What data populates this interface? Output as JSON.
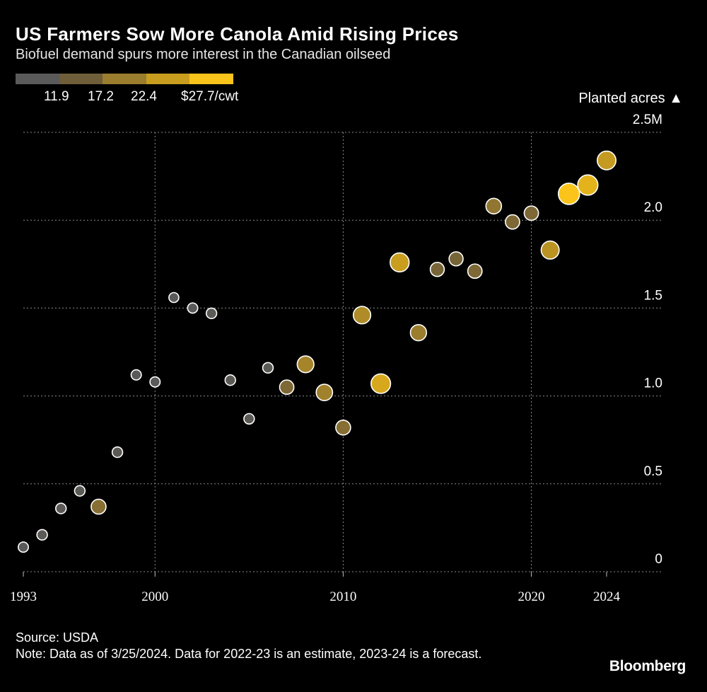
{
  "header": {
    "title": "US Farmers Sow More Canola Amid Rising Prices",
    "subtitle": "Biofuel demand spurs more interest in the Canadian oilseed"
  },
  "legend": {
    "colors": [
      "#5a5a5a",
      "#6e5e3a",
      "#9b7d2e",
      "#c99e1e",
      "#fbc41b"
    ],
    "labels": [
      "11.9",
      "17.2",
      "22.4",
      "$27.7/cwt"
    ]
  },
  "chart_data": {
    "type": "scatter",
    "title": "US Farmers Sow More Canola Amid Rising Prices",
    "subtitle": "Biofuel demand spurs more interest in the Canadian oilseed",
    "xlabel": "",
    "ylabel": "Planted acres ▲",
    "x_ticks": [
      "1993",
      "2000",
      "2010",
      "2020",
      "2024"
    ],
    "x_tick_values": [
      1993,
      2000,
      2010,
      2020,
      2024
    ],
    "y_ticks": [
      "0",
      "0.5",
      "1.0",
      "1.5",
      "2.0",
      "2.5M"
    ],
    "y_tick_values": [
      0,
      0.5,
      1.0,
      1.5,
      2.0,
      2.5
    ],
    "xlim": [
      1992.5,
      2026.8
    ],
    "ylim": [
      0,
      2.5
    ],
    "color_dimension": "Price ($/cwt)",
    "points": [
      {
        "year": 1993,
        "acres": 0.14,
        "price": 10.0
      },
      {
        "year": 1994,
        "acres": 0.21,
        "price": 10.5
      },
      {
        "year": 1995,
        "acres": 0.36,
        "price": 10.5
      },
      {
        "year": 1996,
        "acres": 0.46,
        "price": 10.5
      },
      {
        "year": 1997,
        "acres": 0.37,
        "price": 17.5
      },
      {
        "year": 1998,
        "acres": 0.68,
        "price": 10.5
      },
      {
        "year": 1999,
        "acres": 1.12,
        "price": 10.0
      },
      {
        "year": 2000,
        "acres": 1.08,
        "price": 10.0
      },
      {
        "year": 2001,
        "acres": 1.56,
        "price": 9.5
      },
      {
        "year": 2002,
        "acres": 1.5,
        "price": 10.0
      },
      {
        "year": 2003,
        "acres": 1.47,
        "price": 10.5
      },
      {
        "year": 2004,
        "acres": 1.09,
        "price": 10.5
      },
      {
        "year": 2005,
        "acres": 0.87,
        "price": 10.5
      },
      {
        "year": 2006,
        "acres": 1.16,
        "price": 10.5
      },
      {
        "year": 2007,
        "acres": 1.05,
        "price": 16.5
      },
      {
        "year": 2008,
        "acres": 1.18,
        "price": 20.5
      },
      {
        "year": 2009,
        "acres": 1.02,
        "price": 20.0
      },
      {
        "year": 2010,
        "acres": 0.82,
        "price": 17.5
      },
      {
        "year": 2011,
        "acres": 1.46,
        "price": 21.5
      },
      {
        "year": 2012,
        "acres": 1.07,
        "price": 25.0
      },
      {
        "year": 2013,
        "acres": 1.76,
        "price": 24.0
      },
      {
        "year": 2014,
        "acres": 1.36,
        "price": 19.5
      },
      {
        "year": 2015,
        "acres": 1.72,
        "price": 16.0
      },
      {
        "year": 2016,
        "acres": 1.78,
        "price": 16.0
      },
      {
        "year": 2017,
        "acres": 1.71,
        "price": 16.5
      },
      {
        "year": 2018,
        "acres": 2.08,
        "price": 18.5
      },
      {
        "year": 2019,
        "acres": 1.99,
        "price": 16.5
      },
      {
        "year": 2020,
        "acres": 2.04,
        "price": 16.5
      },
      {
        "year": 2021,
        "acres": 1.83,
        "price": 22.5
      },
      {
        "year": 2022,
        "acres": 2.15,
        "price": 27.7
      },
      {
        "year": 2023,
        "acres": 2.2,
        "price": 26.0
      },
      {
        "year": 2024,
        "acres": 2.34,
        "price": 23.5
      }
    ]
  },
  "footer": {
    "source": "Source: USDA",
    "note": "Note: Data as of 3/25/2024. Data for 2022-23 is an estimate, 2023-24 is a forecast.",
    "brand": "Bloomberg"
  }
}
